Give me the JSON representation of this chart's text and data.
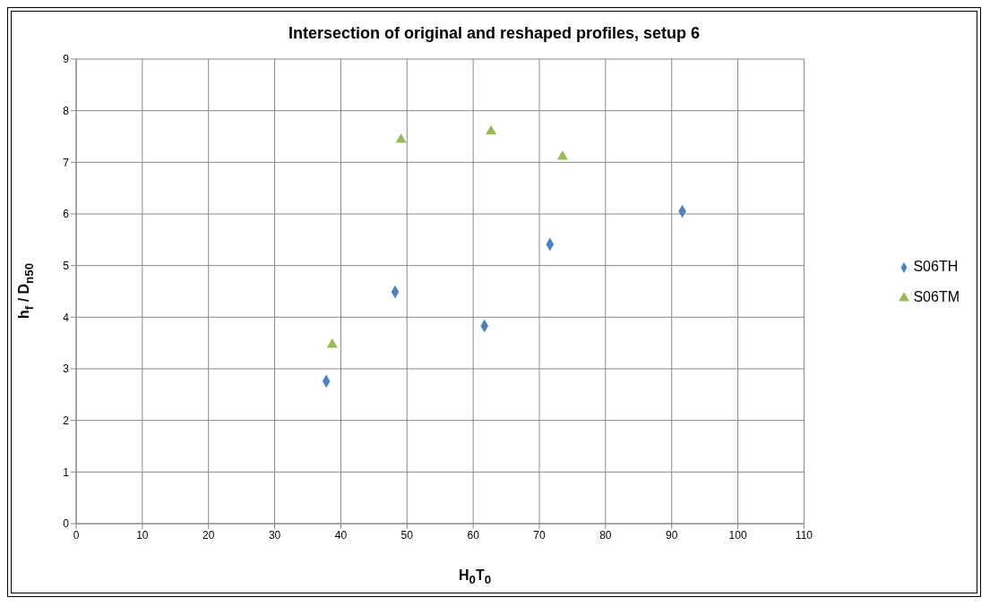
{
  "chart_data": {
    "type": "scatter",
    "title": "Intersection of  original and reshaped profiles, setup 6",
    "xlabel": "H$_{0}$T$_{0}$",
    "ylabel": "h$_{f}$ / D$_{n50}$",
    "xlim": [
      0,
      110
    ],
    "xticks": [
      0,
      10,
      20,
      30,
      40,
      50,
      60,
      70,
      80,
      90,
      100,
      110
    ],
    "ylim": [
      0,
      9
    ],
    "yticks": [
      0,
      1,
      2,
      3,
      4,
      5,
      6,
      7,
      8,
      9
    ],
    "grid": true,
    "legend": "right",
    "series": [
      {
        "name": "S06TM",
        "color": "#9bbb59",
        "marker": "triangle",
        "x": [
          38.7,
          49.1,
          62.7,
          73.5
        ],
        "values": [
          3.47,
          7.44,
          7.6,
          7.11
        ]
      },
      {
        "name": "S06TH",
        "color": "#4f81bd",
        "marker": "diamond",
        "x": [
          37.8,
          48.2,
          61.7,
          71.6,
          91.6
        ],
        "values": [
          2.76,
          4.49,
          3.83,
          5.41,
          6.05
        ]
      }
    ]
  }
}
